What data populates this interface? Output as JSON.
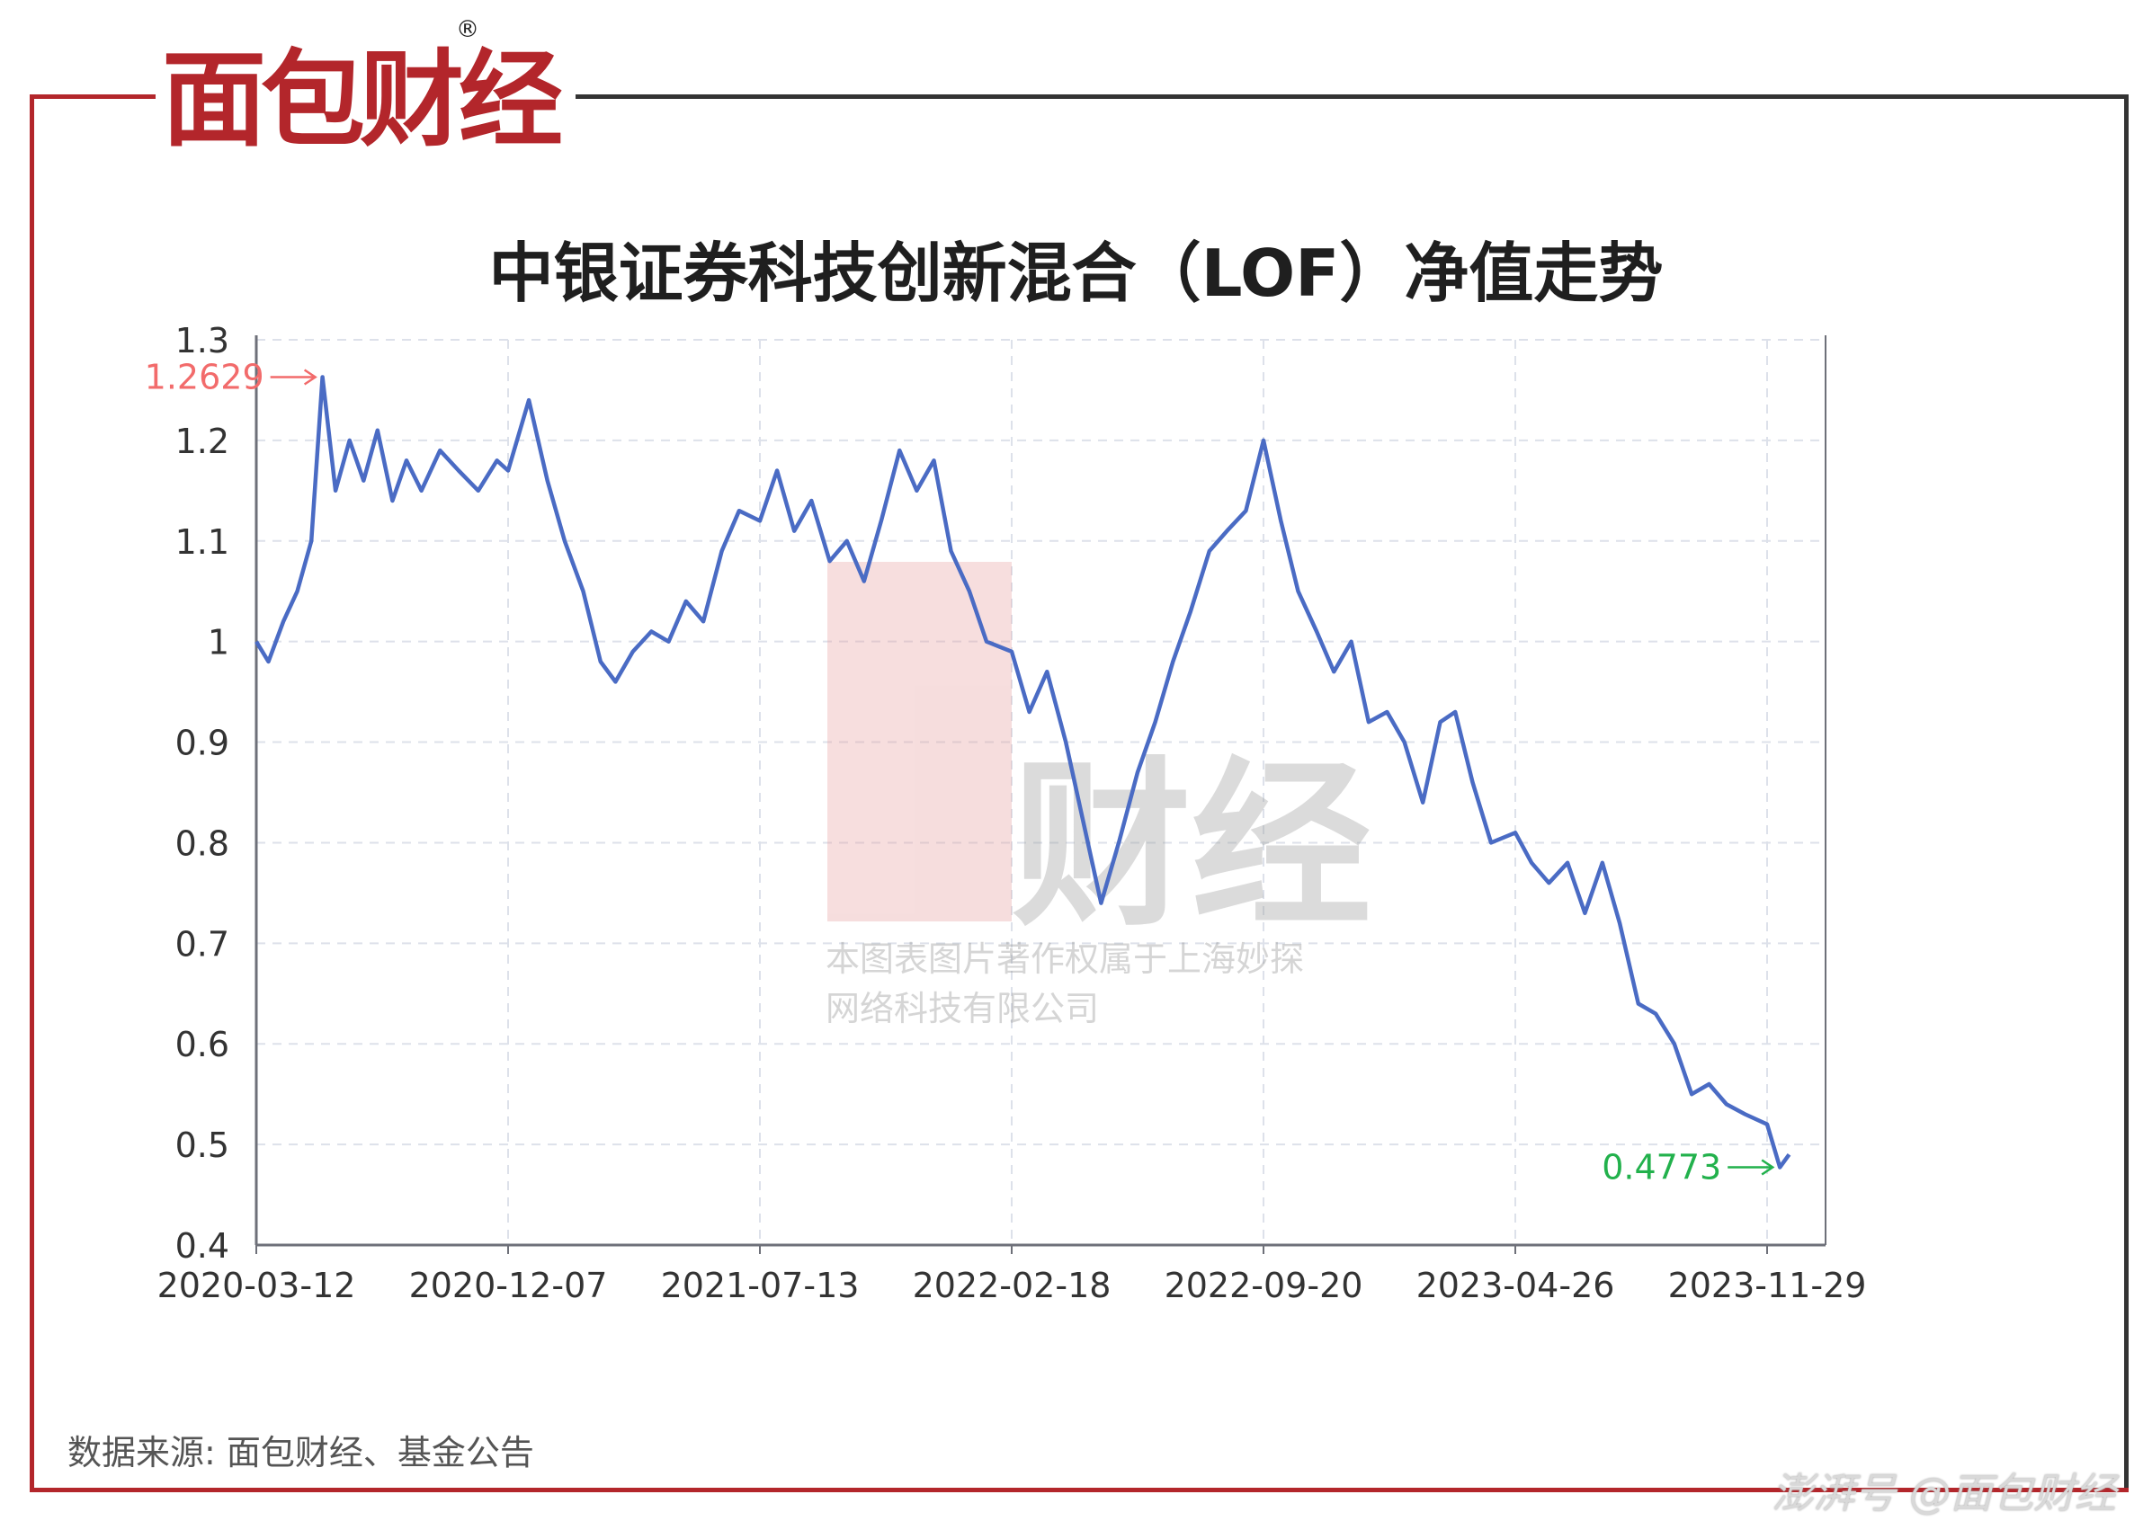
{
  "brand": {
    "logo_text": "面包财经",
    "registered": "®"
  },
  "chart_data": {
    "type": "line",
    "title": "中银证券科技创新混合（LOF）净值走势",
    "xlabel": "",
    "ylabel": "",
    "ylim": [
      0.4,
      1.3
    ],
    "yticks": [
      "0.4",
      "0.5",
      "0.6",
      "0.7",
      "0.8",
      "0.9",
      "1",
      "1.1",
      "1.2",
      "1.3"
    ],
    "xticks": [
      "2020-03-12",
      "2020-12-07",
      "2021-07-13",
      "2022-02-18",
      "2022-09-20",
      "2023-04-26",
      "2023-11-29"
    ],
    "grid": true,
    "line_color": "#4a6bc4",
    "series": [
      {
        "points": [
          [
            "2020-03-12",
            1.0
          ],
          [
            "2020-03-25",
            0.98
          ],
          [
            "2020-04-10",
            1.02
          ],
          [
            "2020-04-25",
            1.05
          ],
          [
            "2020-05-10",
            1.1
          ],
          [
            "2020-05-22",
            1.2629
          ],
          [
            "2020-06-05",
            1.15
          ],
          [
            "2020-06-20",
            1.2
          ],
          [
            "2020-07-05",
            1.16
          ],
          [
            "2020-07-20",
            1.21
          ],
          [
            "2020-08-05",
            1.14
          ],
          [
            "2020-08-20",
            1.18
          ],
          [
            "2020-09-05",
            1.15
          ],
          [
            "2020-09-25",
            1.19
          ],
          [
            "2020-10-15",
            1.17
          ],
          [
            "2020-11-05",
            1.15
          ],
          [
            "2020-11-25",
            1.18
          ],
          [
            "2020-12-07",
            1.17
          ],
          [
            "2020-12-25",
            1.24
          ],
          [
            "2021-01-10",
            1.16
          ],
          [
            "2021-01-25",
            1.1
          ],
          [
            "2021-02-10",
            1.05
          ],
          [
            "2021-02-25",
            0.98
          ],
          [
            "2021-03-10",
            0.96
          ],
          [
            "2021-03-25",
            0.99
          ],
          [
            "2021-04-10",
            1.01
          ],
          [
            "2021-04-25",
            1.0
          ],
          [
            "2021-05-10",
            1.04
          ],
          [
            "2021-05-25",
            1.02
          ],
          [
            "2021-06-10",
            1.09
          ],
          [
            "2021-06-25",
            1.13
          ],
          [
            "2021-07-13",
            1.12
          ],
          [
            "2021-07-28",
            1.17
          ],
          [
            "2021-08-12",
            1.11
          ],
          [
            "2021-08-27",
            1.14
          ],
          [
            "2021-09-12",
            1.08
          ],
          [
            "2021-09-27",
            1.1
          ],
          [
            "2021-10-12",
            1.06
          ],
          [
            "2021-10-27",
            1.12
          ],
          [
            "2021-11-12",
            1.19
          ],
          [
            "2021-11-27",
            1.15
          ],
          [
            "2021-12-12",
            1.18
          ],
          [
            "2021-12-27",
            1.09
          ],
          [
            "2022-01-12",
            1.05
          ],
          [
            "2022-01-27",
            1.0
          ],
          [
            "2022-02-18",
            0.99
          ],
          [
            "2022-03-05",
            0.93
          ],
          [
            "2022-03-20",
            0.97
          ],
          [
            "2022-04-05",
            0.9
          ],
          [
            "2022-04-20",
            0.82
          ],
          [
            "2022-05-05",
            0.74
          ],
          [
            "2022-05-20",
            0.8
          ],
          [
            "2022-06-05",
            0.87
          ],
          [
            "2022-06-20",
            0.92
          ],
          [
            "2022-07-05",
            0.98
          ],
          [
            "2022-07-20",
            1.03
          ],
          [
            "2022-08-05",
            1.09
          ],
          [
            "2022-08-20",
            1.11
          ],
          [
            "2022-09-05",
            1.13
          ],
          [
            "2022-09-20",
            1.2
          ],
          [
            "2022-10-05",
            1.12
          ],
          [
            "2022-10-20",
            1.05
          ],
          [
            "2022-11-05",
            1.01
          ],
          [
            "2022-11-20",
            0.97
          ],
          [
            "2022-12-05",
            1.0
          ],
          [
            "2022-12-20",
            0.92
          ],
          [
            "2023-01-05",
            0.93
          ],
          [
            "2023-01-20",
            0.9
          ],
          [
            "2023-02-05",
            0.84
          ],
          [
            "2023-02-20",
            0.92
          ],
          [
            "2023-03-05",
            0.93
          ],
          [
            "2023-03-20",
            0.86
          ],
          [
            "2023-04-05",
            0.8
          ],
          [
            "2023-04-26",
            0.81
          ],
          [
            "2023-05-10",
            0.78
          ],
          [
            "2023-05-25",
            0.76
          ],
          [
            "2023-06-10",
            0.78
          ],
          [
            "2023-06-25",
            0.73
          ],
          [
            "2023-07-10",
            0.78
          ],
          [
            "2023-07-25",
            0.72
          ],
          [
            "2023-08-10",
            0.64
          ],
          [
            "2023-08-25",
            0.63
          ],
          [
            "2023-09-10",
            0.6
          ],
          [
            "2023-09-25",
            0.55
          ],
          [
            "2023-10-10",
            0.56
          ],
          [
            "2023-10-25",
            0.54
          ],
          [
            "2023-11-10",
            0.53
          ],
          [
            "2023-11-29",
            0.52
          ],
          [
            "2023-12-10",
            0.4773
          ],
          [
            "2023-12-18",
            0.49
          ]
        ]
      }
    ],
    "annotations": [
      {
        "label": "1.2629",
        "color": "#f26b6b"
      },
      {
        "label": "0.4773",
        "color": "#22b14c"
      }
    ]
  },
  "watermark": {
    "line1": "本图表图片著作权属于上海妙探",
    "line2": "网络科技有限公司"
  },
  "footer": {
    "source": "数据来源: 面包财经、基金公告",
    "credit": "澎湃号 @面包财经"
  }
}
